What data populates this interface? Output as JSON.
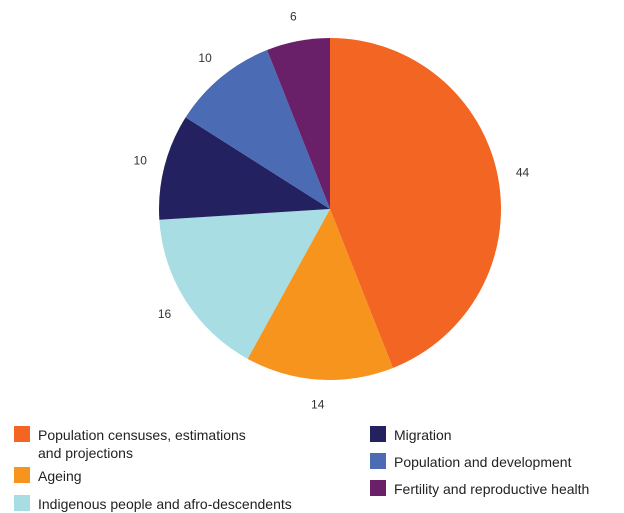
{
  "chart_data": {
    "type": "pie",
    "title": "",
    "legend_position": "bottom",
    "slices": [
      {
        "label": "Population censuses, estimations\nand projections",
        "value": 44,
        "color": "#F26522"
      },
      {
        "label": "Ageing",
        "value": 14,
        "color": "#F7941D"
      },
      {
        "label": "Indigenous people and afro-descendents",
        "value": 16,
        "color": "#A8DDE3"
      },
      {
        "label": "Migration",
        "value": 10,
        "color": "#232160"
      },
      {
        "label": "Population and development",
        "value": 10,
        "color": "#4B6BB5"
      },
      {
        "label": "Fertility and reproductive health",
        "value": 6,
        "color": "#6A2068"
      }
    ]
  }
}
